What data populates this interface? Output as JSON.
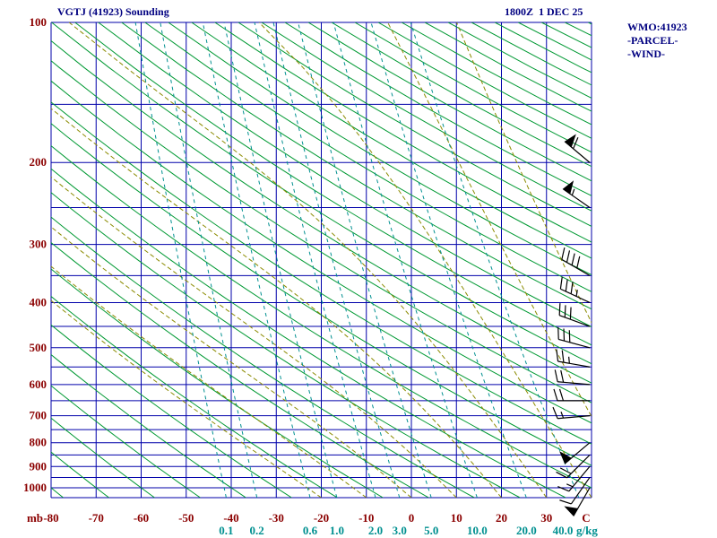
{
  "header": {
    "title": "VGTJ (41923) Sounding",
    "datetime": "1800Z  1 DEC 25"
  },
  "legend": {
    "wmo": "WMO:41923",
    "parcel": "-PARCEL-",
    "wind": "-WIND-"
  },
  "axes": {
    "pressure_unit": "mb",
    "temperature_unit": "C",
    "mixing_ratio_unit": "g/kg",
    "pressure_ticks": [
      100,
      200,
      300,
      400,
      500,
      600,
      700,
      800,
      900,
      1000
    ],
    "temperature_ticks": [
      -80,
      -70,
      -60,
      -50,
      -40,
      -30,
      -20,
      -10,
      0,
      10,
      20,
      30
    ],
    "mixing_ratio_ticks": [
      0.1,
      0.2,
      0.6,
      1.0,
      2.0,
      3.0,
      5.0,
      10.0,
      20.0,
      40.0
    ]
  },
  "chart_data": {
    "type": "skewt_log_p_sounding",
    "title": "VGTJ (41923) Sounding",
    "station": "VGTJ",
    "wmo_id": "41923",
    "valid_time": "1800Z 1 DEC 25",
    "pressure_range_mb": [
      100,
      1050
    ],
    "temperature_range_c": [
      -80,
      40
    ],
    "isobar_lines_mb": [
      100,
      150,
      200,
      250,
      300,
      350,
      400,
      450,
      500,
      550,
      600,
      650,
      700,
      750,
      800,
      850,
      900,
      950,
      1000,
      1050
    ],
    "isotherm_lines_c": [
      -80,
      -70,
      -60,
      -50,
      -40,
      -30,
      -20,
      -10,
      0,
      10,
      20,
      30,
      40
    ],
    "dry_adiabats_c": [
      -80,
      -70,
      -60,
      -50,
      -40,
      -30,
      -20,
      -10,
      0,
      10,
      20,
      30,
      40,
      50,
      60,
      70,
      80,
      90,
      100,
      110,
      120,
      130,
      140,
      150,
      160,
      170,
      180,
      190,
      200,
      210,
      220,
      230,
      240,
      250,
      260,
      270,
      280,
      290,
      300,
      310,
      320,
      330
    ],
    "moist_adiabats_c": [
      -20,
      -10,
      0,
      10,
      20,
      30,
      40,
      50,
      60
    ],
    "mixing_ratio_lines_g_kg": [
      0.1,
      0.2,
      0.6,
      1.0,
      2.0,
      3.0,
      5.0,
      10.0,
      20.0,
      40.0
    ],
    "wind_barbs": [
      {
        "pressure_mb": 200,
        "direction_deg": 310,
        "speed_kt": 60
      },
      {
        "pressure_mb": 250,
        "direction_deg": 305,
        "speed_kt": 55
      },
      {
        "pressure_mb": 350,
        "direction_deg": 300,
        "speed_kt": 40
      },
      {
        "pressure_mb": 400,
        "direction_deg": 295,
        "speed_kt": 35
      },
      {
        "pressure_mb": 450,
        "direction_deg": 290,
        "speed_kt": 30
      },
      {
        "pressure_mb": 500,
        "direction_deg": 285,
        "speed_kt": 30
      },
      {
        "pressure_mb": 550,
        "direction_deg": 280,
        "speed_kt": 25
      },
      {
        "pressure_mb": 600,
        "direction_deg": 275,
        "speed_kt": 20
      },
      {
        "pressure_mb": 650,
        "direction_deg": 270,
        "speed_kt": 20
      },
      {
        "pressure_mb": 700,
        "direction_deg": 265,
        "speed_kt": 15
      },
      {
        "pressure_mb": 800,
        "direction_deg": 230,
        "speed_kt": 50
      },
      {
        "pressure_mb": 850,
        "direction_deg": 225,
        "speed_kt": 20
      },
      {
        "pressure_mb": 900,
        "direction_deg": 220,
        "speed_kt": 15
      },
      {
        "pressure_mb": 950,
        "direction_deg": 215,
        "speed_kt": 10
      },
      {
        "pressure_mb": 1000,
        "direction_deg": 210,
        "speed_kt": 50
      }
    ]
  },
  "colors": {
    "background": "#FFFFFF",
    "header_text": "#000080",
    "grid": "#0000AA",
    "dry_adiabat": "#009933",
    "moist_adiabat": "#8B8B00",
    "mixing_ratio": "#009090",
    "pressure_labels": "#8B0000",
    "temperature_labels": "#8B0000",
    "wind_barb": "#000000"
  }
}
